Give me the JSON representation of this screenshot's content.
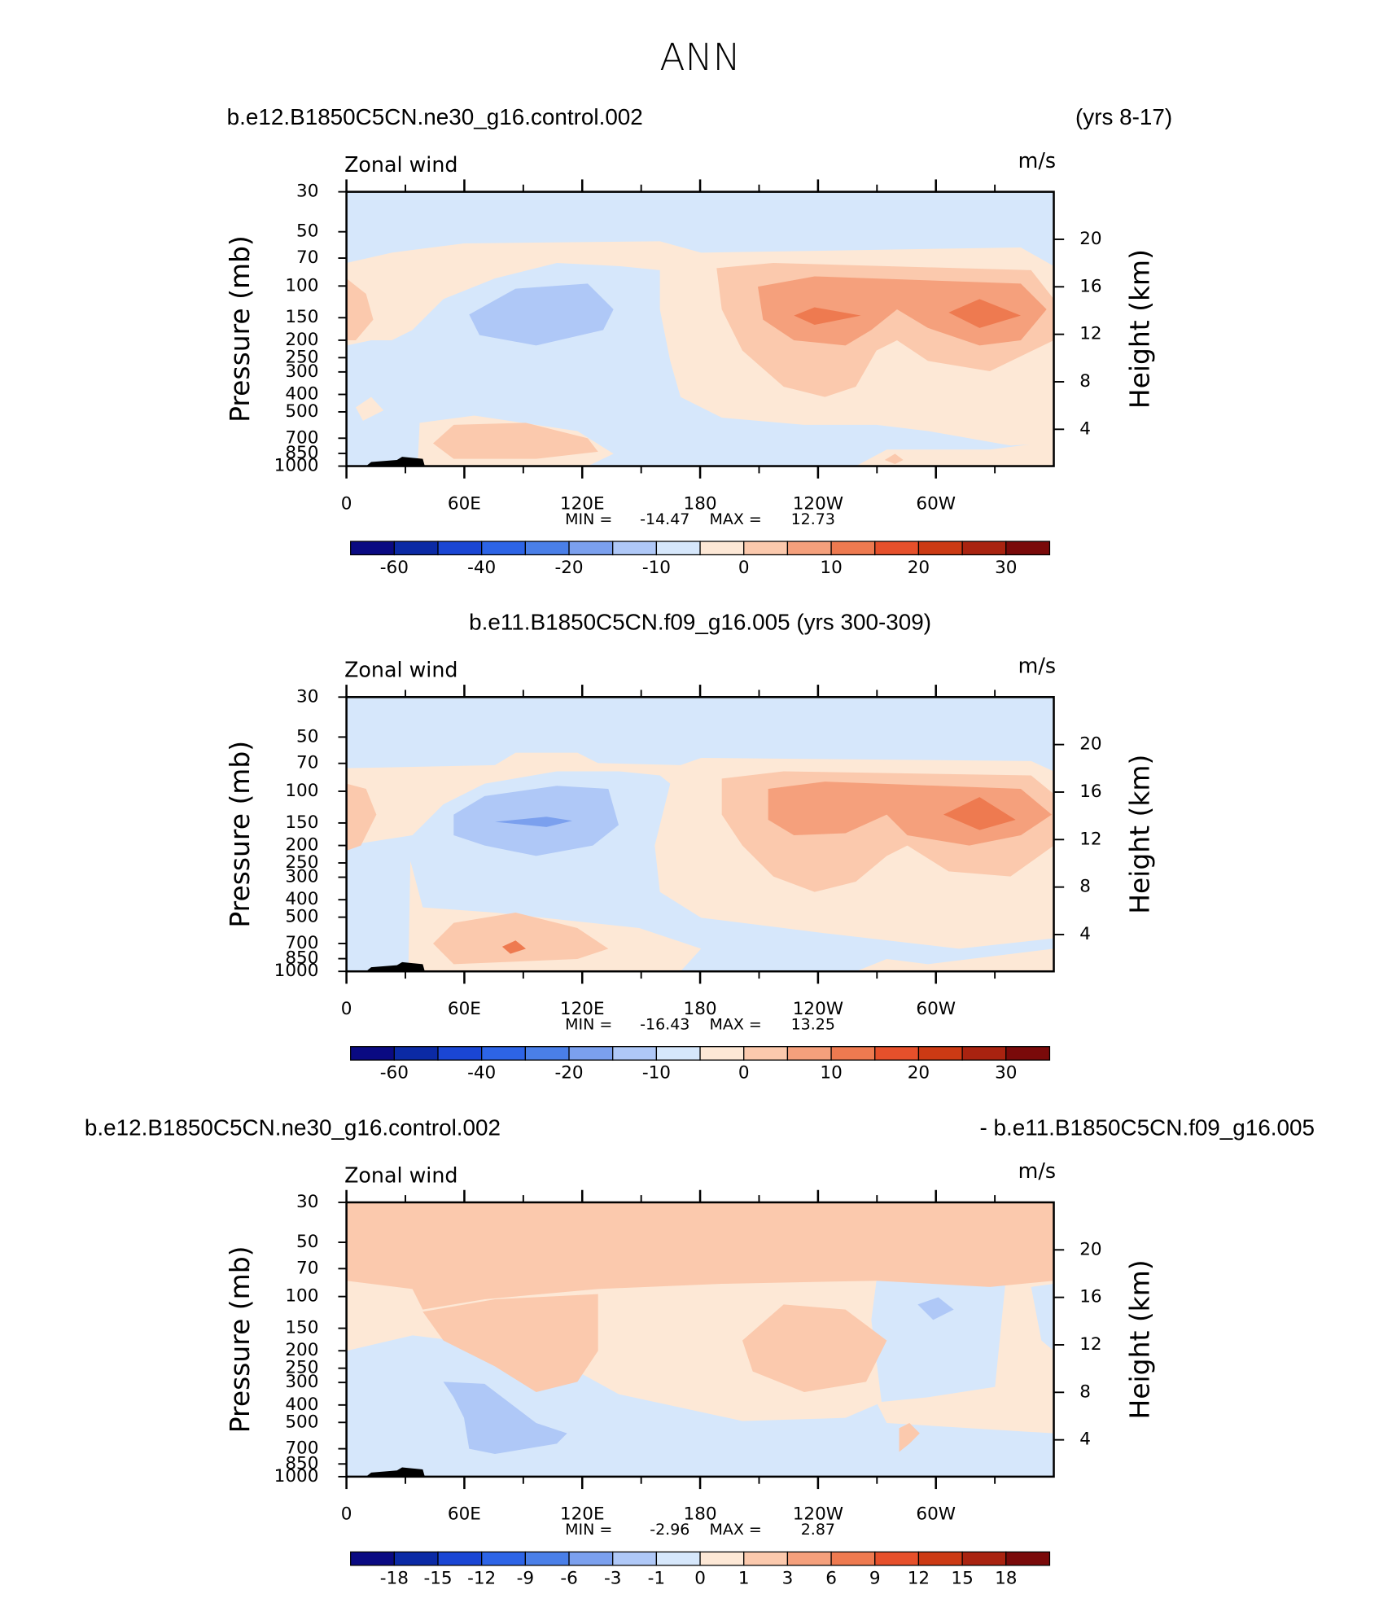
{
  "title": "ANN",
  "chart_data": [
    {
      "type": "contour",
      "left_title": "b.e12.B1850C5CN.ne30_g16.control.002",
      "right_title": "(yrs 8-17)",
      "left_string": "Zonal wind",
      "right_string": "m/s",
      "ylabel": "Pressure (mb)",
      "y2label": "Height (km)",
      "xlim": [
        0,
        360
      ],
      "xticks": [
        0,
        {
          "value": 60,
          "label": "60E"
        },
        {
          "value": 120,
          "label": "120E"
        },
        180,
        {
          "value": 240,
          "label": "120W"
        },
        {
          "value": 300,
          "label": "60W"
        }
      ],
      "ylim": [
        1000,
        30
      ],
      "yscale": "log",
      "yticks": [
        30,
        50,
        70,
        100,
        150,
        200,
        250,
        300,
        400,
        500,
        700,
        850,
        1000
      ],
      "y2lim": [
        0.9,
        24
      ],
      "y2ticks": [
        4,
        8,
        12,
        16,
        20
      ],
      "min_label": "MIN =",
      "min": -14.47,
      "max_label": "MAX =",
      "max": 12.73,
      "colorbar": {
        "colors": [
          "#0a0a82",
          "#0b2aa5",
          "#1a46d4",
          "#2d64e6",
          "#4a7fe8",
          "#7ba0ee",
          "#afc8f7",
          "#d6e7fb",
          "#fde8d6",
          "#fbc9ad",
          "#f5a07c",
          "#ee7a50",
          "#e6502b",
          "#cc3a14",
          "#a92310",
          "#7a0a0a"
        ],
        "ticks": [
          -60,
          -40,
          -20,
          -10,
          0,
          10,
          20,
          30
        ]
      }
    },
    {
      "type": "contour",
      "center_title": "b.e11.B1850C5CN.f09_g16.005 (yrs 300-309)",
      "left_string": "Zonal wind",
      "right_string": "m/s",
      "ylabel": "Pressure (mb)",
      "y2label": "Height (km)",
      "xlim": [
        0,
        360
      ],
      "xticks": [
        0,
        {
          "value": 60,
          "label": "60E"
        },
        {
          "value": 120,
          "label": "120E"
        },
        180,
        {
          "value": 240,
          "label": "120W"
        },
        {
          "value": 300,
          "label": "60W"
        }
      ],
      "ylim": [
        1000,
        30
      ],
      "yscale": "log",
      "yticks": [
        30,
        50,
        70,
        100,
        150,
        200,
        250,
        300,
        400,
        500,
        700,
        850,
        1000
      ],
      "y2lim": [
        0.9,
        24
      ],
      "y2ticks": [
        4,
        8,
        12,
        16,
        20
      ],
      "min_label": "MIN =",
      "min": -16.43,
      "max_label": "MAX =",
      "max": 13.25,
      "colorbar": {
        "colors": [
          "#0a0a82",
          "#0b2aa5",
          "#1a46d4",
          "#2d64e6",
          "#4a7fe8",
          "#7ba0ee",
          "#afc8f7",
          "#d6e7fb",
          "#fde8d6",
          "#fbc9ad",
          "#f5a07c",
          "#ee7a50",
          "#e6502b",
          "#cc3a14",
          "#a92310",
          "#7a0a0a"
        ],
        "ticks": [
          -60,
          -40,
          -20,
          -10,
          0,
          10,
          20,
          30
        ]
      }
    },
    {
      "type": "contour",
      "left_title": "b.e12.B1850C5CN.ne30_g16.control.002",
      "right_title": "- b.e11.B1850C5CN.f09_g16.005",
      "left_string": "Zonal wind",
      "right_string": "m/s",
      "ylabel": "Pressure (mb)",
      "y2label": "Height (km)",
      "xlim": [
        0,
        360
      ],
      "xticks": [
        0,
        {
          "value": 60,
          "label": "60E"
        },
        {
          "value": 120,
          "label": "120E"
        },
        180,
        {
          "value": 240,
          "label": "120W"
        },
        {
          "value": 300,
          "label": "60W"
        }
      ],
      "ylim": [
        1000,
        30
      ],
      "yscale": "log",
      "yticks": [
        30,
        50,
        70,
        100,
        150,
        200,
        250,
        300,
        400,
        500,
        700,
        850,
        1000
      ],
      "y2lim": [
        0.9,
        24
      ],
      "y2ticks": [
        4,
        8,
        12,
        16,
        20
      ],
      "min_label": "MIN =",
      "min": -2.96,
      "max_label": "MAX =",
      "max": 2.87,
      "colorbar": {
        "colors": [
          "#0a0a82",
          "#0b2aa5",
          "#1a46d4",
          "#2d64e6",
          "#4a7fe8",
          "#7ba0ee",
          "#afc8f7",
          "#d6e7fb",
          "#fde8d6",
          "#fbc9ad",
          "#f5a07c",
          "#ee7a50",
          "#e6502b",
          "#cc3a14",
          "#a92310",
          "#7a0a0a"
        ],
        "ticks": [
          -18,
          -15,
          -12,
          -9,
          -6,
          -3,
          -1,
          0,
          1,
          3,
          6,
          9,
          12,
          15,
          18
        ]
      }
    }
  ]
}
